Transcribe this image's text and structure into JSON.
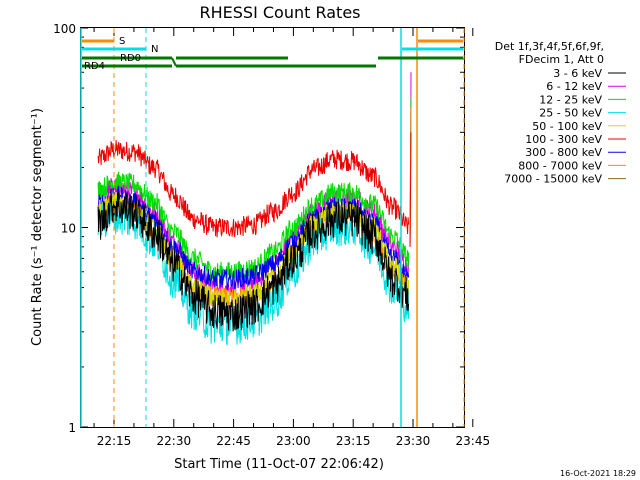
{
  "chart_data": {
    "type": "line",
    "title": "RHESSI Count Rates",
    "xlabel": "Start Time (11-Oct-07 22:06:42)",
    "ylabel": "Count Rate (s⁻¹ detector segment⁻¹)",
    "y_scale": "log",
    "ylim": [
      1,
      100
    ],
    "x_range_minutes_after_start": [
      0,
      45
    ],
    "x_tick_labels": [
      "22:15",
      "22:30",
      "22:45",
      "23:00",
      "23:15",
      "23:30",
      "23:45"
    ],
    "y_tick_labels": [
      "1",
      "10",
      "100"
    ],
    "legend_header": [
      "Det 1f,3f,4f,5f,6f,9f,",
      "FDecim 1, Att 0"
    ],
    "legend_position": "right",
    "timestamp": "16-Oct-2021 18:29",
    "grid": false,
    "series": [
      {
        "name": "3 - 6 keV",
        "color": "#000000",
        "x": [
          "22:11",
          "22:15",
          "22:20",
          "22:25",
          "22:30",
          "22:35",
          "22:40",
          "22:45",
          "22:50",
          "22:55",
          "23:00",
          "23:05",
          "23:10",
          "23:15",
          "23:20",
          "23:25",
          "23:29"
        ],
        "values": [
          10.5,
          13.0,
          12.0,
          9.5,
          6.5,
          4.5,
          3.8,
          3.7,
          4.0,
          5.0,
          7.0,
          9.5,
          11.0,
          11.0,
          9.0,
          5.5,
          4.5
        ]
      },
      {
        "name": "6 - 12 keV",
        "color": "#e000e0",
        "x": [
          "22:11",
          "22:15",
          "22:20",
          "22:25",
          "22:30",
          "22:35",
          "22:40",
          "22:45",
          "22:50",
          "22:55",
          "23:00",
          "23:05",
          "23:10",
          "23:15",
          "23:20",
          "23:25",
          "23:29"
        ],
        "values": [
          15.0,
          16.0,
          15.0,
          12.0,
          8.5,
          6.0,
          5.2,
          5.0,
          5.3,
          6.5,
          9.0,
          12.0,
          14.0,
          14.0,
          12.0,
          8.0,
          6.5
        ]
      },
      {
        "name": "12 - 25 keV",
        "color": "#00dd00",
        "x": [
          "22:11",
          "22:15",
          "22:20",
          "22:25",
          "22:30",
          "22:35",
          "22:40",
          "22:45",
          "22:50",
          "22:55",
          "23:00",
          "23:05",
          "23:10",
          "23:15",
          "23:20",
          "23:25",
          "23:29"
        ],
        "values": [
          15.5,
          17.0,
          16.5,
          13.5,
          9.5,
          7.0,
          6.0,
          6.0,
          6.3,
          7.5,
          10.0,
          13.0,
          15.0,
          15.0,
          13.0,
          9.0,
          7.0
        ]
      },
      {
        "name": "25 - 50 keV",
        "color": "#00e0e0",
        "x": [
          "22:11",
          "22:15",
          "22:20",
          "22:25",
          "22:30",
          "22:35",
          "22:40",
          "22:45",
          "22:50",
          "22:55",
          "23:00",
          "23:05",
          "23:10",
          "23:15",
          "23:20",
          "23:25",
          "23:29"
        ],
        "values": [
          10.5,
          11.5,
          10.8,
          8.5,
          5.5,
          3.8,
          3.2,
          3.2,
          3.4,
          4.2,
          6.0,
          8.5,
          10.0,
          10.0,
          8.0,
          5.0,
          4.0
        ]
      },
      {
        "name": "50 - 100 keV",
        "color": "#d8d800",
        "x": [
          "22:11",
          "22:15",
          "22:20",
          "22:25",
          "22:30",
          "22:35",
          "22:40",
          "22:45",
          "22:50",
          "22:55",
          "23:00",
          "23:05",
          "23:10",
          "23:15",
          "23:20",
          "23:25",
          "23:29"
        ],
        "values": [
          12.0,
          13.5,
          12.5,
          10.0,
          7.0,
          5.0,
          4.5,
          4.3,
          4.6,
          5.5,
          7.5,
          10.5,
          12.0,
          12.0,
          10.0,
          6.5,
          5.0
        ]
      },
      {
        "name": "100 - 300 keV",
        "color": "#ee0000",
        "x": [
          "22:11",
          "22:15",
          "22:20",
          "22:25",
          "22:30",
          "22:35",
          "22:40",
          "22:45",
          "22:50",
          "22:55",
          "23:00",
          "23:05",
          "23:10",
          "23:15",
          "23:20",
          "23:25",
          "23:29"
        ],
        "values": [
          22.0,
          24.5,
          24.0,
          20.0,
          14.5,
          11.0,
          10.0,
          10.0,
          10.3,
          12.0,
          15.0,
          19.5,
          22.0,
          21.5,
          18.0,
          12.5,
          10.0
        ]
      },
      {
        "name": "300 - 800 keV",
        "color": "#0000ee",
        "x": [
          "22:11",
          "22:15",
          "22:20",
          "22:25",
          "22:30",
          "22:35",
          "22:40",
          "22:45",
          "22:50",
          "22:55",
          "23:00",
          "23:05",
          "23:10",
          "23:15",
          "23:20",
          "23:25",
          "23:29"
        ],
        "values": [
          13.0,
          14.5,
          13.5,
          11.0,
          8.0,
          6.0,
          5.5,
          5.5,
          5.7,
          6.5,
          8.5,
          11.0,
          12.5,
          12.5,
          10.5,
          7.0,
          5.5
        ]
      },
      {
        "name": "800 - 7000 keV",
        "color": "#ff8c00",
        "x": [
          "22:11",
          "22:15",
          "22:20",
          "22:25",
          "22:30",
          "22:35",
          "22:40",
          "22:45",
          "22:50",
          "22:55",
          "23:00",
          "23:05",
          "23:10",
          "23:15",
          "23:20",
          "23:25",
          "23:29"
        ],
        "values": [
          12.0,
          13.0,
          12.0,
          9.5,
          6.8,
          5.0,
          4.5,
          4.4,
          4.6,
          5.4,
          7.2,
          10.0,
          11.5,
          11.5,
          9.5,
          6.0,
          5.0
        ]
      },
      {
        "name": "7000 - 15000 keV",
        "color": "#8b6914",
        "x": [],
        "values": []
      }
    ],
    "annotations": {
      "S": {
        "label": "S",
        "color": "#ff8c00",
        "bar_color": "#ff8c00"
      },
      "N": {
        "label": "N",
        "color": "#00e0e0",
        "bar_color": "#00e0e0"
      },
      "RD0": {
        "label": "RD0",
        "color": "#007700"
      },
      "RD4": {
        "label": "RD4",
        "color": "#007700"
      }
    }
  }
}
